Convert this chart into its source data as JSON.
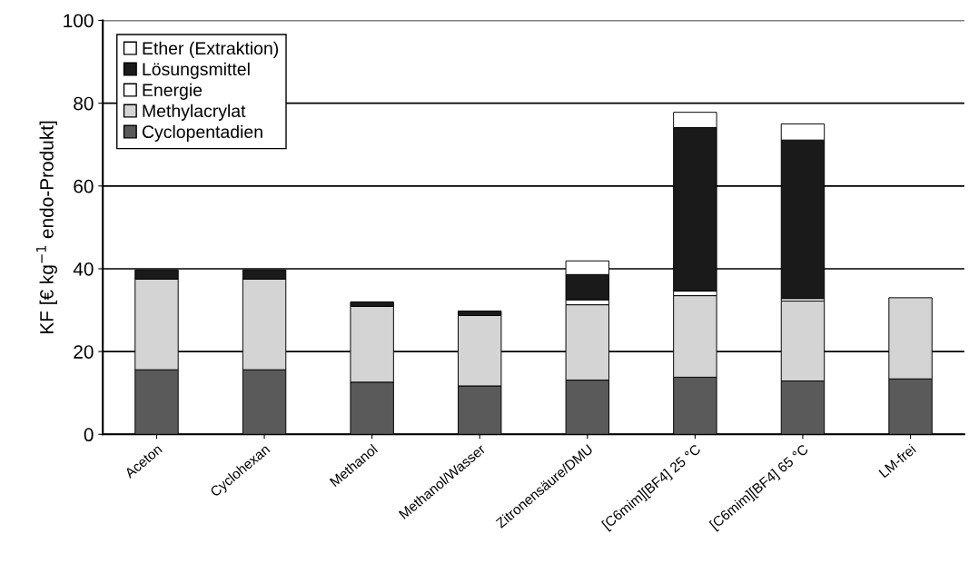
{
  "chart_data": {
    "type": "bar",
    "stacked": true,
    "ylabel": "KF [€ kg$^{−1}$ endo-Produkt]",
    "categories": [
      "Aceton",
      "Cyclohexan",
      "Methanol",
      "Methanol/Wasser",
      "Zitronensäure/DMU",
      "[C6mim][BF4] 25 °C",
      "[C6mim][BF4] 65 °C",
      "LM-frei"
    ],
    "series": [
      {
        "name": "Cyclopentadien",
        "color": "#5a5a5a",
        "values": [
          15.6,
          15.6,
          12.6,
          11.7,
          13.1,
          13.8,
          12.9,
          13.4
        ]
      },
      {
        "name": "Methylacrylat",
        "color": "#d4d4d4",
        "values": [
          21.9,
          21.9,
          18.3,
          17.0,
          18.2,
          19.7,
          19.3,
          19.6
        ]
      },
      {
        "name": "Energie",
        "color": "#ffffff",
        "values": [
          0,
          0,
          0,
          0,
          1.2,
          1.1,
          0.6,
          0
        ]
      },
      {
        "name": "Lösungsmittel",
        "color": "#1a1a1a",
        "values": [
          2.2,
          2.2,
          1.1,
          1.1,
          6.1,
          39.5,
          38.3,
          0
        ]
      },
      {
        "name": "Ether (Extraktion)",
        "color": "#ffffff",
        "values": [
          0,
          0,
          0,
          0,
          3.3,
          3.7,
          3.9,
          0
        ]
      }
    ],
    "ylim": [
      0,
      100
    ],
    "yticks": [
      0,
      20,
      40,
      60,
      80,
      100
    ],
    "grid": "y",
    "legend": "top left"
  }
}
